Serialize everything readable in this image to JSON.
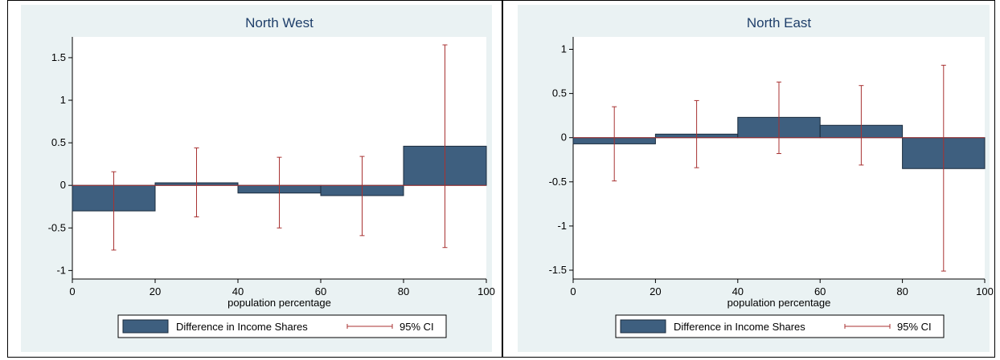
{
  "colors": {
    "bar_fill": "#3e5f7f",
    "bar_stroke": "#1a2b3d",
    "ci": "#a83232",
    "zero_line": "#a83232",
    "panel_bg": "#eaf2f3"
  },
  "chart_data": [
    {
      "type": "bar",
      "title": "North West",
      "xlabel": "population percentage",
      "ylabel": "",
      "xlim": [
        0,
        100
      ],
      "ylim": [
        -1.1,
        1.65
      ],
      "x_ticks": [
        0,
        20,
        40,
        60,
        80,
        100
      ],
      "y_ticks": [
        1.5,
        1,
        0.5,
        0,
        -0.5,
        -1
      ],
      "y_tick_labels": [
        "1.5",
        "1",
        "0.5",
        "0",
        "-0.5",
        "-1"
      ],
      "bins": [
        [
          0,
          20
        ],
        [
          20,
          40
        ],
        [
          40,
          60
        ],
        [
          60,
          80
        ],
        [
          80,
          100
        ]
      ],
      "series": [
        {
          "name": "Difference in Income Shares",
          "values": [
            -0.3,
            0.03,
            -0.09,
            -0.12,
            0.46
          ]
        },
        {
          "name": "95% CI",
          "x": [
            10,
            30,
            50,
            70,
            90
          ],
          "lower": [
            -0.76,
            -0.37,
            -0.5,
            -0.59,
            -0.73
          ],
          "upper": [
            0.16,
            0.44,
            0.33,
            0.34,
            1.65
          ]
        }
      ],
      "legend": {
        "position": "bottom",
        "items": [
          "Difference in Income Shares",
          "95% CI"
        ]
      }
    },
    {
      "type": "bar",
      "title": "North East",
      "xlabel": "population percentage",
      "ylabel": "",
      "xlim": [
        0,
        100
      ],
      "ylim": [
        -1.6,
        1.05
      ],
      "x_ticks": [
        0,
        20,
        40,
        60,
        80,
        100
      ],
      "y_ticks": [
        1,
        0.5,
        0,
        -0.5,
        -1,
        -1.5
      ],
      "y_tick_labels": [
        "1",
        "0.5",
        "0",
        "-0.5",
        "-1",
        "-1.5"
      ],
      "bins": [
        [
          0,
          20
        ],
        [
          20,
          40
        ],
        [
          40,
          60
        ],
        [
          60,
          80
        ],
        [
          80,
          100
        ]
      ],
      "series": [
        {
          "name": "Difference in Income Shares",
          "values": [
            -0.07,
            0.04,
            0.23,
            0.14,
            -0.35
          ]
        },
        {
          "name": "95% CI",
          "x": [
            10,
            30,
            50,
            70,
            90
          ],
          "lower": [
            -0.49,
            -0.34,
            -0.18,
            -0.31,
            -1.51
          ],
          "upper": [
            0.35,
            0.42,
            0.63,
            0.59,
            0.82
          ]
        }
      ],
      "legend": {
        "position": "bottom",
        "items": [
          "Difference in Income Shares",
          "95% CI"
        ]
      }
    }
  ]
}
